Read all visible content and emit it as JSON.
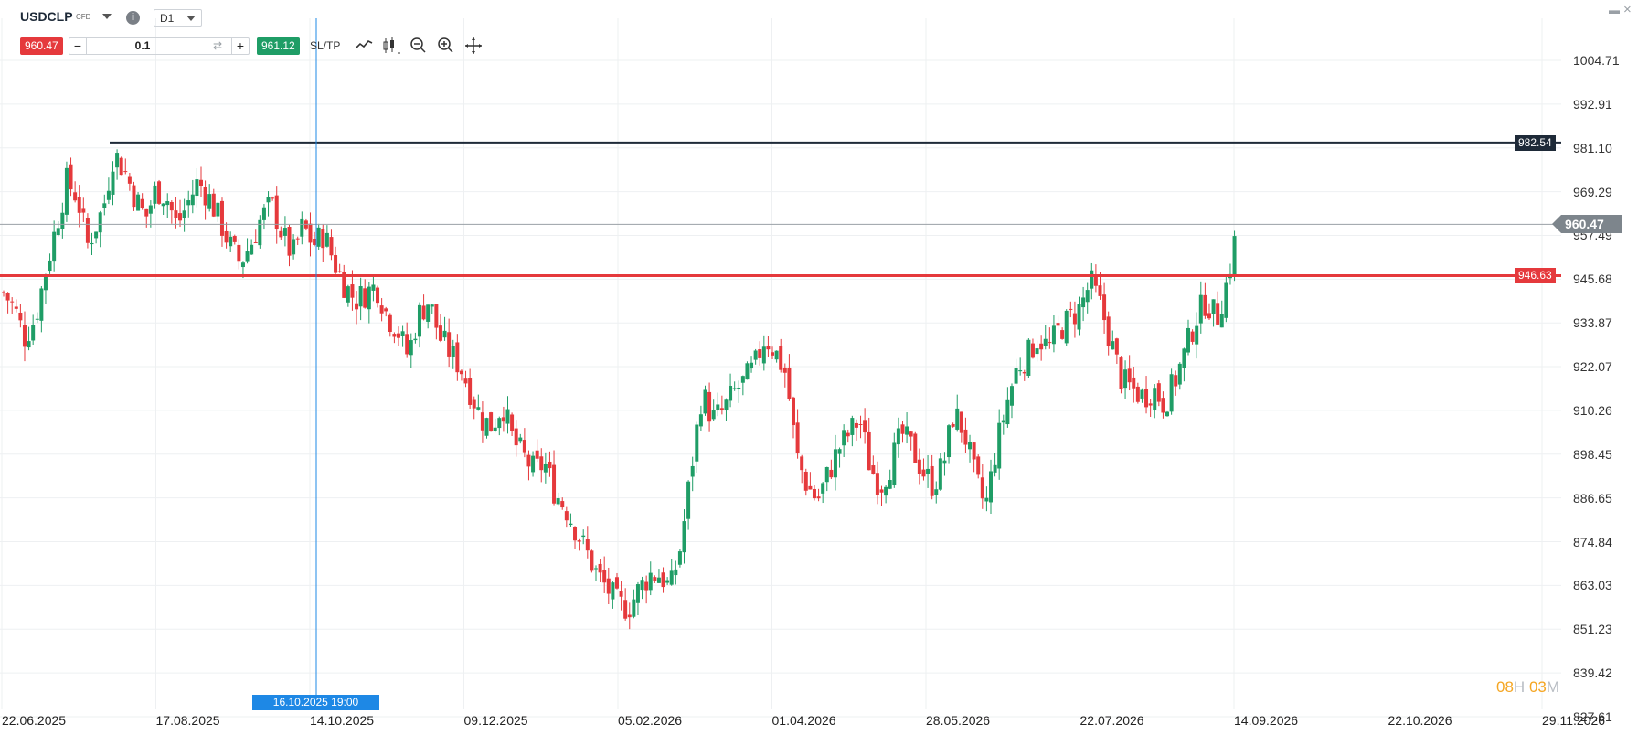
{
  "symbol": {
    "name": "USDCLP",
    "type": "CFD",
    "info_icon": "info-icon",
    "timeframe": "D1"
  },
  "trade_bar": {
    "sell_price": "960.47",
    "minus": "−",
    "quantity": "0.1",
    "swap_icon": "⇄",
    "plus": "+",
    "buy_price": "961.12",
    "sltp_label": "SL/TP"
  },
  "toolbar": {
    "icons": [
      "line-chart-icon",
      "candlestick-icon",
      "zoom-out-icon",
      "zoom-in-icon",
      "crosshair-move-icon"
    ]
  },
  "window": {
    "minimize_icon": "▬",
    "close_icon": "×"
  },
  "colors": {
    "bullish": "#1f9d66",
    "bearish": "#e5393c",
    "support_line": "#e5393c",
    "resistance_line": "#1e2a38",
    "price_line": "#7d858c",
    "crosshair": "#1e88e5",
    "timer_accent": "#f5a623"
  },
  "horizontal_lines": {
    "resistance": "982.54",
    "support": "946.63",
    "current_price": "960.47"
  },
  "crosshair": {
    "time_label": "16.10.2025 19:00"
  },
  "timer": {
    "hours": "08",
    "hours_unit": "H",
    "minutes": "03",
    "minutes_unit": "M"
  },
  "chart_data": {
    "type": "candlestick",
    "x_axis_labels": [
      "22.06.2025",
      "17.08.2025",
      "14.10.2025",
      "09.12.2025",
      "05.02.2026",
      "01.04.2026",
      "28.05.2026",
      "22.07.2026",
      "14.09.2026",
      "22.10.2026",
      "29.11.2026"
    ],
    "y_axis_labels": [
      "1004.71",
      "992.91",
      "981.10",
      "969.29",
      "957.49",
      "945.68",
      "933.87",
      "922.07",
      "910.26",
      "898.45",
      "886.65",
      "874.84",
      "863.03",
      "851.23",
      "839.42",
      "827.61"
    ],
    "ylim": [
      827.61,
      1004.71
    ],
    "grid": true,
    "close_path": [
      [
        0,
        942
      ],
      [
        10,
        938
      ],
      [
        20,
        930
      ],
      [
        30,
        935
      ],
      [
        40,
        948
      ],
      [
        50,
        960
      ],
      [
        60,
        972
      ],
      [
        70,
        968
      ],
      [
        80,
        955
      ],
      [
        95,
        965
      ],
      [
        105,
        980
      ],
      [
        115,
        975
      ],
      [
        125,
        968
      ],
      [
        135,
        962
      ],
      [
        145,
        970
      ],
      [
        155,
        968
      ],
      [
        165,
        960
      ],
      [
        175,
        966
      ],
      [
        185,
        972
      ],
      [
        195,
        968
      ],
      [
        205,
        962
      ],
      [
        215,
        955
      ],
      [
        225,
        950
      ],
      [
        235,
        955
      ],
      [
        245,
        962
      ],
      [
        255,
        966
      ],
      [
        265,
        958
      ],
      [
        275,
        952
      ],
      [
        285,
        960
      ],
      [
        295,
        955
      ],
      [
        305,
        958
      ],
      [
        315,
        950
      ],
      [
        325,
        944
      ],
      [
        335,
        940
      ],
      [
        345,
        942
      ],
      [
        355,
        944
      ],
      [
        365,
        936
      ],
      [
        375,
        932
      ],
      [
        385,
        925
      ],
      [
        395,
        936
      ],
      [
        405,
        940
      ],
      [
        415,
        930
      ],
      [
        425,
        926
      ],
      [
        435,
        922
      ],
      [
        445,
        915
      ],
      [
        455,
        908
      ],
      [
        465,
        906
      ],
      [
        475,
        912
      ],
      [
        485,
        902
      ],
      [
        495,
        898
      ],
      [
        505,
        894
      ],
      [
        515,
        896
      ],
      [
        525,
        888
      ],
      [
        535,
        884
      ],
      [
        545,
        878
      ],
      [
        555,
        872
      ],
      [
        565,
        866
      ],
      [
        575,
        862
      ],
      [
        585,
        858
      ],
      [
        595,
        857
      ],
      [
        605,
        862
      ],
      [
        615,
        866
      ],
      [
        625,
        866
      ],
      [
        635,
        862
      ],
      [
        645,
        874
      ],
      [
        655,
        895
      ],
      [
        665,
        915
      ],
      [
        675,
        908
      ],
      [
        685,
        910
      ],
      [
        695,
        915
      ],
      [
        705,
        918
      ],
      [
        715,
        922
      ],
      [
        725,
        930
      ],
      [
        735,
        926
      ],
      [
        745,
        920
      ],
      [
        755,
        898
      ],
      [
        765,
        890
      ],
      [
        775,
        886
      ],
      [
        785,
        893
      ],
      [
        795,
        900
      ],
      [
        805,
        904
      ],
      [
        815,
        908
      ],
      [
        825,
        895
      ],
      [
        835,
        890
      ],
      [
        845,
        896
      ],
      [
        855,
        904
      ],
      [
        865,
        900
      ],
      [
        875,
        894
      ],
      [
        885,
        890
      ],
      [
        895,
        896
      ],
      [
        905,
        910
      ],
      [
        915,
        904
      ],
      [
        925,
        892
      ],
      [
        935,
        884
      ],
      [
        945,
        900
      ],
      [
        955,
        912
      ],
      [
        965,
        922
      ],
      [
        975,
        925
      ],
      [
        985,
        930
      ],
      [
        995,
        927
      ],
      [
        1005,
        932
      ],
      [
        1015,
        935
      ],
      [
        1025,
        938
      ],
      [
        1035,
        945
      ],
      [
        1045,
        938
      ],
      [
        1055,
        928
      ],
      [
        1065,
        918
      ],
      [
        1075,
        916
      ],
      [
        1085,
        914
      ],
      [
        1095,
        916
      ],
      [
        1105,
        912
      ],
      [
        1115,
        918
      ],
      [
        1125,
        926
      ],
      [
        1135,
        935
      ],
      [
        1145,
        940
      ],
      [
        1155,
        935
      ],
      [
        1165,
        945
      ],
      [
        1175,
        960
      ]
    ]
  }
}
